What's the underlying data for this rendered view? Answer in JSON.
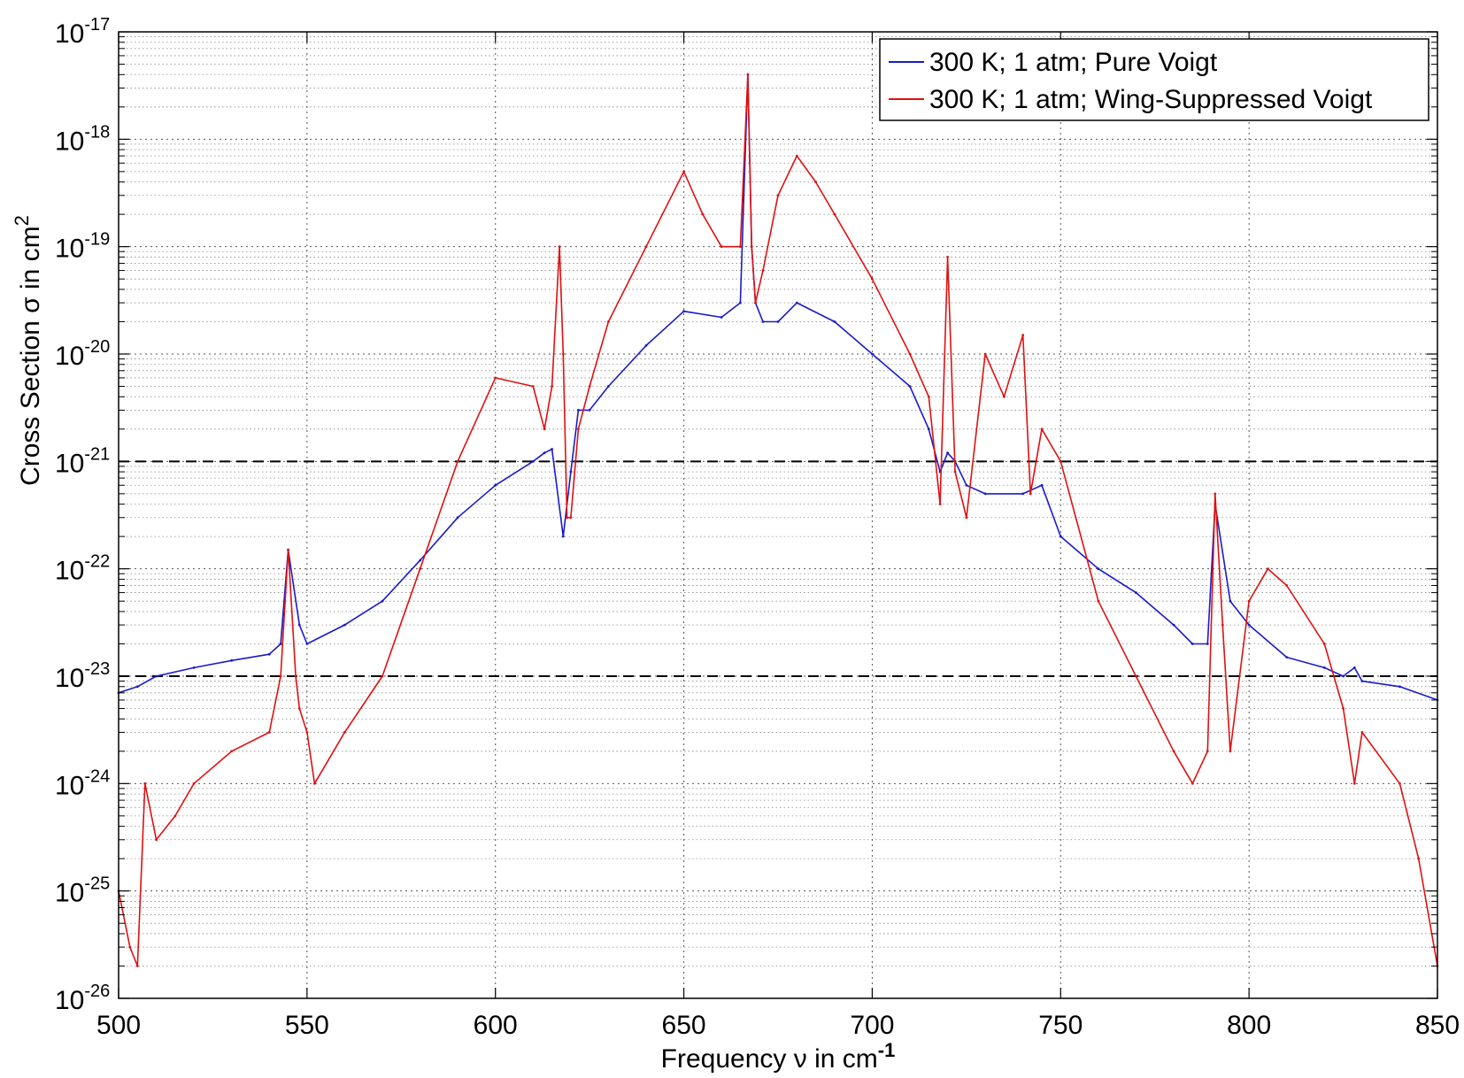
{
  "chart_data": {
    "type": "line",
    "xlabel": {
      "text": "Frequency ν in cm",
      "sup": "-1"
    },
    "ylabel": {
      "text": "Cross Section σ in cm",
      "sup": "2"
    },
    "xlim": [
      500,
      850
    ],
    "ylim": [
      1e-26,
      1e-17
    ],
    "yscale": "log",
    "grid": true,
    "minor_grid": true,
    "legend_position": "top-right",
    "x_ticks": [
      {
        "value": 500,
        "label": "500"
      },
      {
        "value": 550,
        "label": "550"
      },
      {
        "value": 600,
        "label": "600"
      },
      {
        "value": 650,
        "label": "650"
      },
      {
        "value": 700,
        "label": "700"
      },
      {
        "value": 750,
        "label": "750"
      },
      {
        "value": 800,
        "label": "800"
      },
      {
        "value": 850,
        "label": "850"
      }
    ],
    "y_ticks": [
      {
        "exponent": -17,
        "base": "10",
        "sup": "-17"
      },
      {
        "exponent": -18,
        "base": "10",
        "sup": "-18"
      },
      {
        "exponent": -19,
        "base": "10",
        "sup": "-19"
      },
      {
        "exponent": -20,
        "base": "10",
        "sup": "-20"
      },
      {
        "exponent": -21,
        "base": "10",
        "sup": "-21"
      },
      {
        "exponent": -22,
        "base": "10",
        "sup": "-22"
      },
      {
        "exponent": -23,
        "base": "10",
        "sup": "-23"
      },
      {
        "exponent": -24,
        "base": "10",
        "sup": "-24"
      },
      {
        "exponent": -25,
        "base": "10",
        "sup": "-25"
      },
      {
        "exponent": -26,
        "base": "10",
        "sup": "-26"
      }
    ],
    "reference_lines": [
      {
        "y": 1e-21,
        "style": "dashed",
        "color": "#000000"
      },
      {
        "y": 1e-23,
        "style": "dashed",
        "color": "#000000"
      }
    ],
    "series": [
      {
        "name": "300 K; 1 atm; Pure Voigt",
        "color": "#1a1acc",
        "x": [
          500,
          505,
          510,
          520,
          530,
          540,
          543,
          545,
          548,
          550,
          560,
          570,
          580,
          590,
          600,
          610,
          613,
          615,
          618,
          620,
          622,
          625,
          630,
          640,
          650,
          660,
          665,
          667,
          668,
          669,
          671,
          675,
          680,
          690,
          700,
          710,
          715,
          718,
          720,
          722,
          725,
          730,
          740,
          745,
          750,
          760,
          770,
          780,
          785,
          789,
          791,
          795,
          800,
          810,
          820,
          825,
          828,
          830,
          840,
          850
        ],
        "y": [
          7e-24,
          8e-24,
          1e-23,
          1.2e-23,
          1.4e-23,
          1.6e-23,
          2e-23,
          1.5e-22,
          3e-23,
          2e-23,
          3e-23,
          5e-23,
          1.2e-22,
          3e-22,
          6e-22,
          1e-21,
          1.2e-21,
          1.3e-21,
          2e-22,
          8e-22,
          3e-21,
          3e-21,
          5e-21,
          1.2e-20,
          2.5e-20,
          2.2e-20,
          3e-20,
          4e-18,
          1e-19,
          3e-20,
          2e-20,
          2e-20,
          3e-20,
          2e-20,
          1e-20,
          5e-21,
          2e-21,
          8e-22,
          1.2e-21,
          1e-21,
          6e-22,
          5e-22,
          5e-22,
          6e-22,
          2e-22,
          1e-22,
          6e-23,
          3e-23,
          2e-23,
          2e-23,
          4e-22,
          5e-23,
          3e-23,
          1.5e-23,
          1.2e-23,
          1e-23,
          1.2e-23,
          9e-24,
          8e-24,
          6e-24
        ]
      },
      {
        "name": "300 K; 1 atm; Wing-Suppressed Voigt",
        "color": "#e01010",
        "x": [
          500,
          503,
          505,
          507,
          510,
          515,
          520,
          530,
          540,
          543,
          545,
          547,
          548,
          550,
          552,
          560,
          570,
          580,
          590,
          600,
          610,
          613,
          615,
          617,
          618,
          619,
          620,
          622,
          625,
          630,
          640,
          650,
          655,
          660,
          665,
          667,
          668,
          669,
          671,
          675,
          680,
          685,
          690,
          700,
          710,
          715,
          718,
          720,
          722,
          725,
          730,
          735,
          740,
          742,
          745,
          750,
          760,
          770,
          780,
          785,
          789,
          791,
          793,
          795,
          800,
          805,
          810,
          820,
          825,
          828,
          830,
          840,
          845,
          850
        ],
        "y": [
          1e-25,
          3e-26,
          2e-26,
          1e-24,
          3e-25,
          5e-25,
          1e-24,
          2e-24,
          3e-24,
          1e-23,
          1.5e-22,
          1e-23,
          5e-24,
          3e-24,
          1e-24,
          3e-24,
          1e-23,
          1e-22,
          1e-21,
          6e-21,
          5e-21,
          2e-21,
          5e-21,
          1e-19,
          1e-20,
          3e-22,
          3e-22,
          2e-21,
          5e-21,
          2e-20,
          1e-19,
          5e-19,
          2e-19,
          1e-19,
          1e-19,
          4e-18,
          1e-19,
          3e-20,
          6e-20,
          3e-19,
          7e-19,
          4e-19,
          2e-19,
          5e-20,
          1e-20,
          4e-21,
          4e-22,
          8e-20,
          8e-22,
          3e-22,
          1e-20,
          4e-21,
          1.5e-20,
          5e-22,
          2e-21,
          1e-21,
          5e-23,
          1e-23,
          2e-24,
          1e-24,
          2e-24,
          5e-22,
          3e-23,
          2e-24,
          5e-23,
          1e-22,
          7e-23,
          2e-23,
          5e-24,
          1e-24,
          3e-24,
          1e-24,
          2e-25,
          2e-26
        ]
      }
    ]
  }
}
